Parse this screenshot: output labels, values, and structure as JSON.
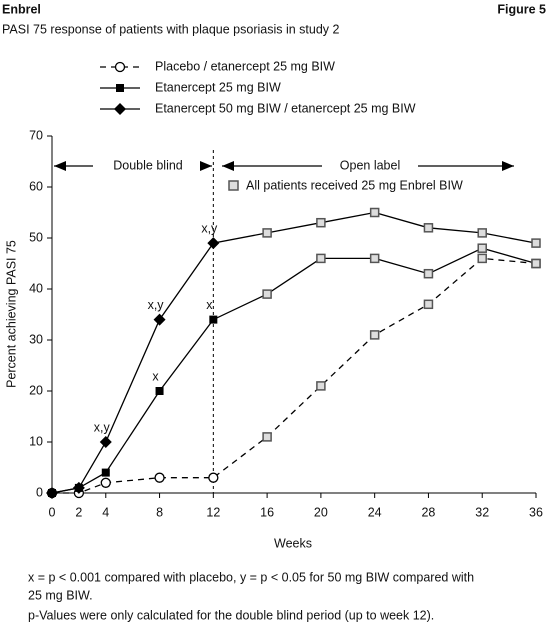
{
  "chart_data": {
    "type": "line",
    "header": "Enbrel",
    "figure_label": "Figure 5",
    "title": "PASI 75 response of patients with plaque psoriasis in study 2",
    "x_label": "Weeks",
    "y_label": "Percent achieving PASI 75",
    "x": [
      0,
      2,
      4,
      8,
      12,
      16,
      20,
      24,
      28,
      32,
      36
    ],
    "series": [
      {
        "name": "Placebo / etanercept 25 mg BIW",
        "color": "#000000",
        "marker": "circle",
        "dashed": true,
        "values": [
          0,
          0,
          2,
          3,
          3,
          11,
          21,
          31,
          37,
          46,
          45
        ],
        "significance": [
          null,
          null,
          null,
          null,
          null,
          null,
          null,
          null,
          null,
          null,
          null
        ]
      },
      {
        "name": "Etanercept 25 mg BIW",
        "color": "#000000",
        "marker": "square",
        "dashed": false,
        "values": [
          0,
          1,
          4,
          20,
          34,
          39,
          46,
          46,
          43,
          48,
          45
        ],
        "significance": [
          null,
          null,
          null,
          "x",
          "x",
          null,
          null,
          null,
          null,
          null,
          null
        ]
      },
      {
        "name": "Etanercept 50 mg BIW / etanercept 25 mg BIW",
        "color": "#000000",
        "marker": "diamond",
        "dashed": false,
        "values": [
          0,
          1,
          10,
          34,
          49,
          51,
          53,
          55,
          52,
          51,
          49
        ],
        "significance": [
          null,
          null,
          "x,y",
          "x,y",
          "x,y",
          null,
          null,
          null,
          null,
          null,
          null
        ]
      }
    ],
    "divider": 12,
    "phase_labels": [
      "Double blind",
      "Open label"
    ],
    "open_label_note": "All patients received 25 mg Enbrel BIW",
    "xlim": [
      0,
      36
    ],
    "xticks": [
      0,
      2,
      4,
      8,
      12,
      16,
      20,
      24,
      28,
      32,
      36
    ],
    "ylim": [
      0,
      70
    ],
    "yticks": [
      0,
      10,
      20,
      30,
      40,
      50,
      60,
      70
    ],
    "grid": false,
    "footnotes": [
      "x = p < 0.001 compared with placebo, y = p < 0.05 for 50 mg BIW compared with",
      "25 mg BIW.",
      "p-Values were only calculated for the double blind period (up to week 12)."
    ]
  }
}
